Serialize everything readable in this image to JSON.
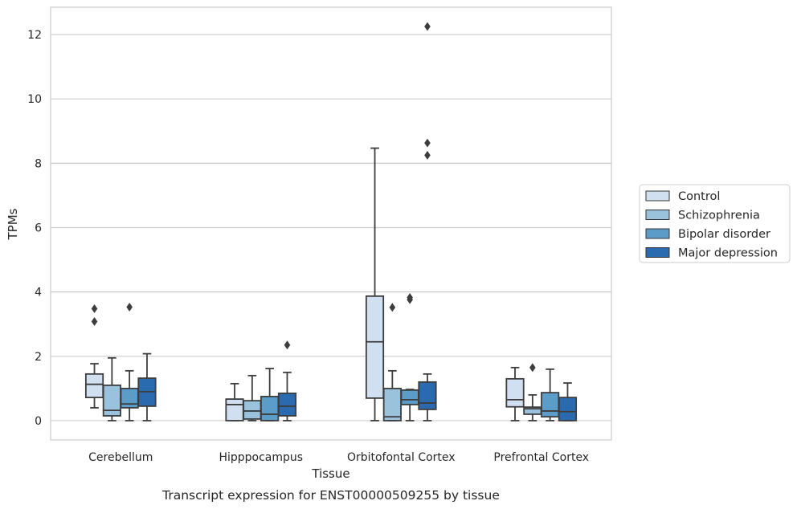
{
  "chart_data": {
    "type": "box",
    "title": "Transcript expression for ENST00000509255 by tissue",
    "xlabel": "Tissue",
    "ylabel": "TPMs",
    "ylim": [
      -0.6,
      12.85
    ],
    "yticks": [
      0,
      2,
      4,
      6,
      8,
      10,
      12
    ],
    "ytick_labels": [
      "0",
      "2",
      "4",
      "6",
      "8",
      "10",
      "12"
    ],
    "grid": "horizontal",
    "legend_position": "right-outside",
    "categories": [
      "Cerebellum",
      "Hipppocampus",
      "Orbitofontal Cortex",
      "Prefrontal Cortex"
    ],
    "series": [
      {
        "name": "Control",
        "color": "#d0e0f0",
        "boxes": [
          {
            "whislo": 0.4,
            "q1": 0.72,
            "med": 1.13,
            "q3": 1.45,
            "whishi": 1.77,
            "fliers": [
              3.08,
              3.48
            ]
          },
          {
            "whislo": 0.0,
            "q1": 0.0,
            "med": 0.5,
            "q3": 0.67,
            "whishi": 1.15,
            "fliers": []
          },
          {
            "whislo": 0.0,
            "q1": 0.7,
            "med": 2.45,
            "q3": 3.87,
            "whishi": 8.47,
            "fliers": []
          },
          {
            "whislo": 0.0,
            "q1": 0.43,
            "med": 0.65,
            "q3": 1.3,
            "whishi": 1.65,
            "fliers": []
          }
        ]
      },
      {
        "name": "Schizophrenia",
        "color": "#9ac2dc",
        "boxes": [
          {
            "whislo": 0.0,
            "q1": 0.15,
            "med": 0.32,
            "q3": 1.1,
            "whishi": 1.95,
            "fliers": []
          },
          {
            "whislo": 0.0,
            "q1": 0.05,
            "med": 0.3,
            "q3": 0.62,
            "whishi": 1.4,
            "fliers": []
          },
          {
            "whislo": 0.0,
            "q1": 0.0,
            "med": 0.12,
            "q3": 1.0,
            "whishi": 1.55,
            "fliers": [
              3.52
            ]
          },
          {
            "whislo": 0.0,
            "q1": 0.2,
            "med": 0.37,
            "q3": 0.42,
            "whishi": 0.8,
            "fliers": [
              1.65
            ]
          }
        ]
      },
      {
        "name": "Bipolar disorder",
        "color": "#5b9cc9",
        "boxes": [
          {
            "whislo": 0.0,
            "q1": 0.4,
            "med": 0.52,
            "q3": 1.0,
            "whishi": 1.55,
            "fliers": [
              3.53
            ]
          },
          {
            "whislo": 0.0,
            "q1": 0.0,
            "med": 0.2,
            "q3": 0.75,
            "whishi": 1.62,
            "fliers": []
          },
          {
            "whislo": 0.0,
            "q1": 0.5,
            "med": 0.65,
            "q3": 0.95,
            "whishi": 0.97,
            "fliers": [
              3.76,
              3.83
            ]
          },
          {
            "whislo": 0.0,
            "q1": 0.12,
            "med": 0.3,
            "q3": 0.87,
            "whishi": 1.6,
            "fliers": []
          }
        ]
      },
      {
        "name": "Major depression",
        "color": "#2a6aae",
        "boxes": [
          {
            "whislo": 0.0,
            "q1": 0.45,
            "med": 0.9,
            "q3": 1.32,
            "whishi": 2.08,
            "fliers": []
          },
          {
            "whislo": 0.0,
            "q1": 0.15,
            "med": 0.45,
            "q3": 0.85,
            "whishi": 1.5,
            "fliers": [
              2.35
            ]
          },
          {
            "whislo": 0.0,
            "q1": 0.35,
            "med": 0.55,
            "q3": 1.2,
            "whishi": 1.45,
            "fliers": [
              8.25,
              8.63,
              12.25
            ]
          },
          {
            "whislo": 0.0,
            "q1": 0.0,
            "med": 0.28,
            "q3": 0.72,
            "whishi": 1.17,
            "fliers": []
          }
        ]
      }
    ]
  }
}
